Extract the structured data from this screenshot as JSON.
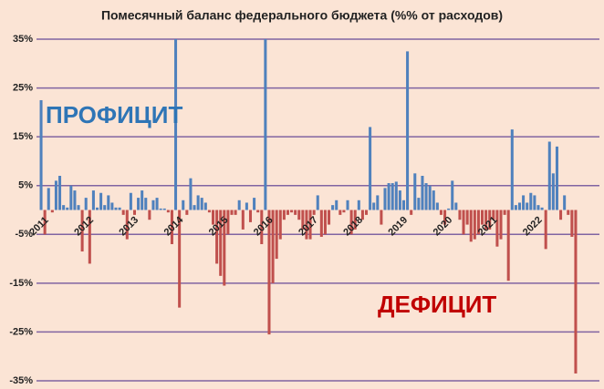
{
  "chart_data": {
    "type": "bar",
    "title": "Помесячный баланс федерального бюджета (%% от расходов)",
    "annotations": [
      "ПРОФИЦИТ",
      "ДЕФИЦИТ"
    ],
    "categories": [
      "2011",
      null,
      null,
      null,
      null,
      null,
      null,
      null,
      null,
      null,
      null,
      null,
      "2012",
      null,
      null,
      null,
      null,
      null,
      null,
      null,
      null,
      null,
      null,
      null,
      "2013",
      null,
      null,
      null,
      null,
      null,
      null,
      null,
      null,
      null,
      null,
      null,
      "2014",
      null,
      null,
      null,
      null,
      null,
      null,
      null,
      null,
      null,
      null,
      null,
      "2015",
      null,
      null,
      null,
      null,
      null,
      null,
      null,
      null,
      null,
      null,
      null,
      "2016",
      null,
      null,
      null,
      null,
      null,
      null,
      null,
      null,
      null,
      null,
      null,
      "2017",
      null,
      null,
      null,
      null,
      null,
      null,
      null,
      null,
      null,
      null,
      null,
      "2018",
      null,
      null,
      null,
      null,
      null,
      null,
      null,
      null,
      null,
      null,
      null,
      "2019",
      null,
      null,
      null,
      null,
      null,
      null,
      null,
      null,
      null,
      null,
      null,
      "2020",
      null,
      null,
      null,
      null,
      null,
      null,
      null,
      null,
      null,
      null,
      null,
      "2021",
      null,
      null,
      null,
      null,
      null,
      null,
      null,
      null,
      null,
      null,
      null,
      "2022",
      null,
      null,
      null,
      null,
      null,
      null,
      null,
      null,
      null,
      null,
      null
    ],
    "values": [
      22.5,
      -5,
      4.5,
      -0.5,
      6,
      7,
      1,
      0.5,
      5,
      4,
      1,
      -8.5,
      2.5,
      -11,
      4,
      0.5,
      3.5,
      1,
      3,
      1.5,
      0.5,
      0.5,
      -1,
      -6,
      3.5,
      -1,
      2.5,
      4,
      2.5,
      -2,
      2,
      2.5,
      0.3,
      0.3,
      -0.5,
      -7,
      35,
      -20,
      2,
      -1,
      6.5,
      1,
      3,
      2.5,
      1.5,
      -0.5,
      -3,
      -11,
      -13.5,
      -15.5,
      -5,
      -1,
      -1,
      2,
      -4,
      1.5,
      -2.5,
      2.5,
      -0.5,
      -7,
      35,
      -25.5,
      -15,
      -10,
      -6,
      -2,
      -1,
      -0.5,
      -1,
      -2,
      -4,
      -6,
      -6,
      -1,
      3,
      -5.5,
      -5,
      -3,
      1,
      2,
      -1,
      -0.5,
      2,
      -5,
      -4,
      2,
      -2,
      -1,
      17,
      1.5,
      3,
      -3,
      4.5,
      5.5,
      5.5,
      5.8,
      4,
      2,
      32.5,
      -1,
      7.5,
      2.5,
      7,
      5.5,
      5,
      4,
      1.5,
      -1,
      -3,
      0.3,
      6,
      1.5,
      -2,
      -5,
      -3,
      -6.5,
      -6,
      -5,
      -3,
      -4,
      -4,
      -2,
      -7.5,
      -6,
      -1,
      -14.5,
      16.5,
      1,
      1.5,
      3,
      1.5,
      3.5,
      3,
      1,
      0.5,
      -8,
      14,
      7.5,
      13,
      -2,
      3,
      -1,
      -5.5,
      -33.5
    ],
    "positive_color": "#4f81bd",
    "negative_color": "#c0504d",
    "grid_color": "#8064a2",
    "ylim": [
      -35,
      35
    ],
    "yticks": [
      {
        "value": 35,
        "label": "35%"
      },
      {
        "value": 25,
        "label": "25%"
      },
      {
        "value": 15,
        "label": "15%"
      },
      {
        "value": 5,
        "label": "5%"
      },
      {
        "value": -5,
        "label": "-5%"
      },
      {
        "value": -15,
        "label": "-15%"
      },
      {
        "value": -25,
        "label": "-25%"
      },
      {
        "value": -35,
        "label": "-35%"
      }
    ],
    "grid": true
  }
}
